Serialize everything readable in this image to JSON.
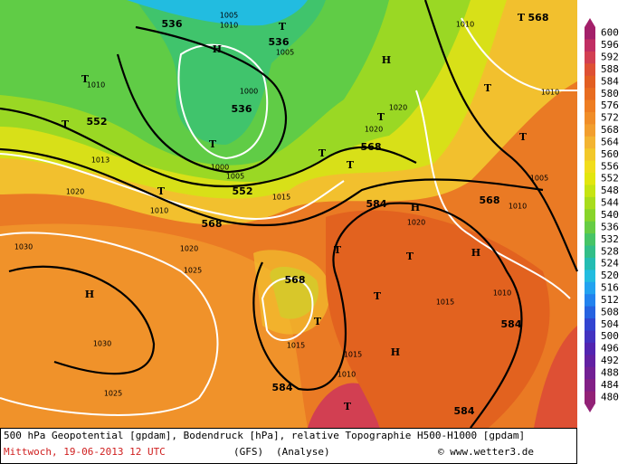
{
  "colorbar": {
    "labels": [
      600,
      596,
      592,
      588,
      584,
      580,
      576,
      572,
      568,
      564,
      560,
      556,
      552,
      548,
      544,
      540,
      536,
      532,
      528,
      524,
      520,
      516,
      512,
      508,
      504,
      500,
      496,
      492,
      488,
      484,
      480
    ],
    "colors": [
      "#a3206a",
      "#c02e63",
      "#d23f52",
      "#de5034",
      "#e25e22",
      "#e86c20",
      "#ee7d22",
      "#f08d28",
      "#f29e2e",
      "#f3b432",
      "#f2c82a",
      "#f1dd1c",
      "#e2e60e",
      "#c6e412",
      "#a8dc1c",
      "#88d42a",
      "#66cc44",
      "#46c466",
      "#32be88",
      "#24bcb2",
      "#22bce0",
      "#22a2f0",
      "#2282ee",
      "#2662e0",
      "#3244d0",
      "#4232c0",
      "#5224b0",
      "#6220a2",
      "#722094",
      "#822086",
      "#922276"
    ]
  },
  "map": {
    "labels": [
      "536",
      "536",
      "552",
      "536",
      "552",
      "568",
      "568",
      "584",
      "568",
      "568",
      "584",
      "584",
      "584",
      "568",
      "1005",
      "1010",
      "1005",
      "1010",
      "1000",
      "1000",
      "1005",
      "1013",
      "1020",
      "1010",
      "1015",
      "1020",
      "1025",
      "1030",
      "1030",
      "1025",
      "1020",
      "1020",
      "1020",
      "1015",
      "1010",
      "1015",
      "1015",
      "1010",
      "1005",
      "1010",
      "1010",
      "1010",
      "H",
      "T",
      "H",
      "T",
      "T",
      "T",
      "T",
      "T",
      "T",
      "T",
      "T",
      "T",
      "H",
      "T",
      "T",
      "H",
      "T",
      "H",
      "T",
      "H",
      "T",
      "T"
    ]
  },
  "footer": {
    "line1": "500 hPa Geopotential [gpdam], Bodendruck [hPa], relative Topographie H500-H1000 [gpdam]",
    "date": "Mittwoch, 19-06-2013  12 UTC",
    "model": "(GFS)",
    "run": "(Analyse)",
    "credit": "© www.wetter3.de"
  }
}
